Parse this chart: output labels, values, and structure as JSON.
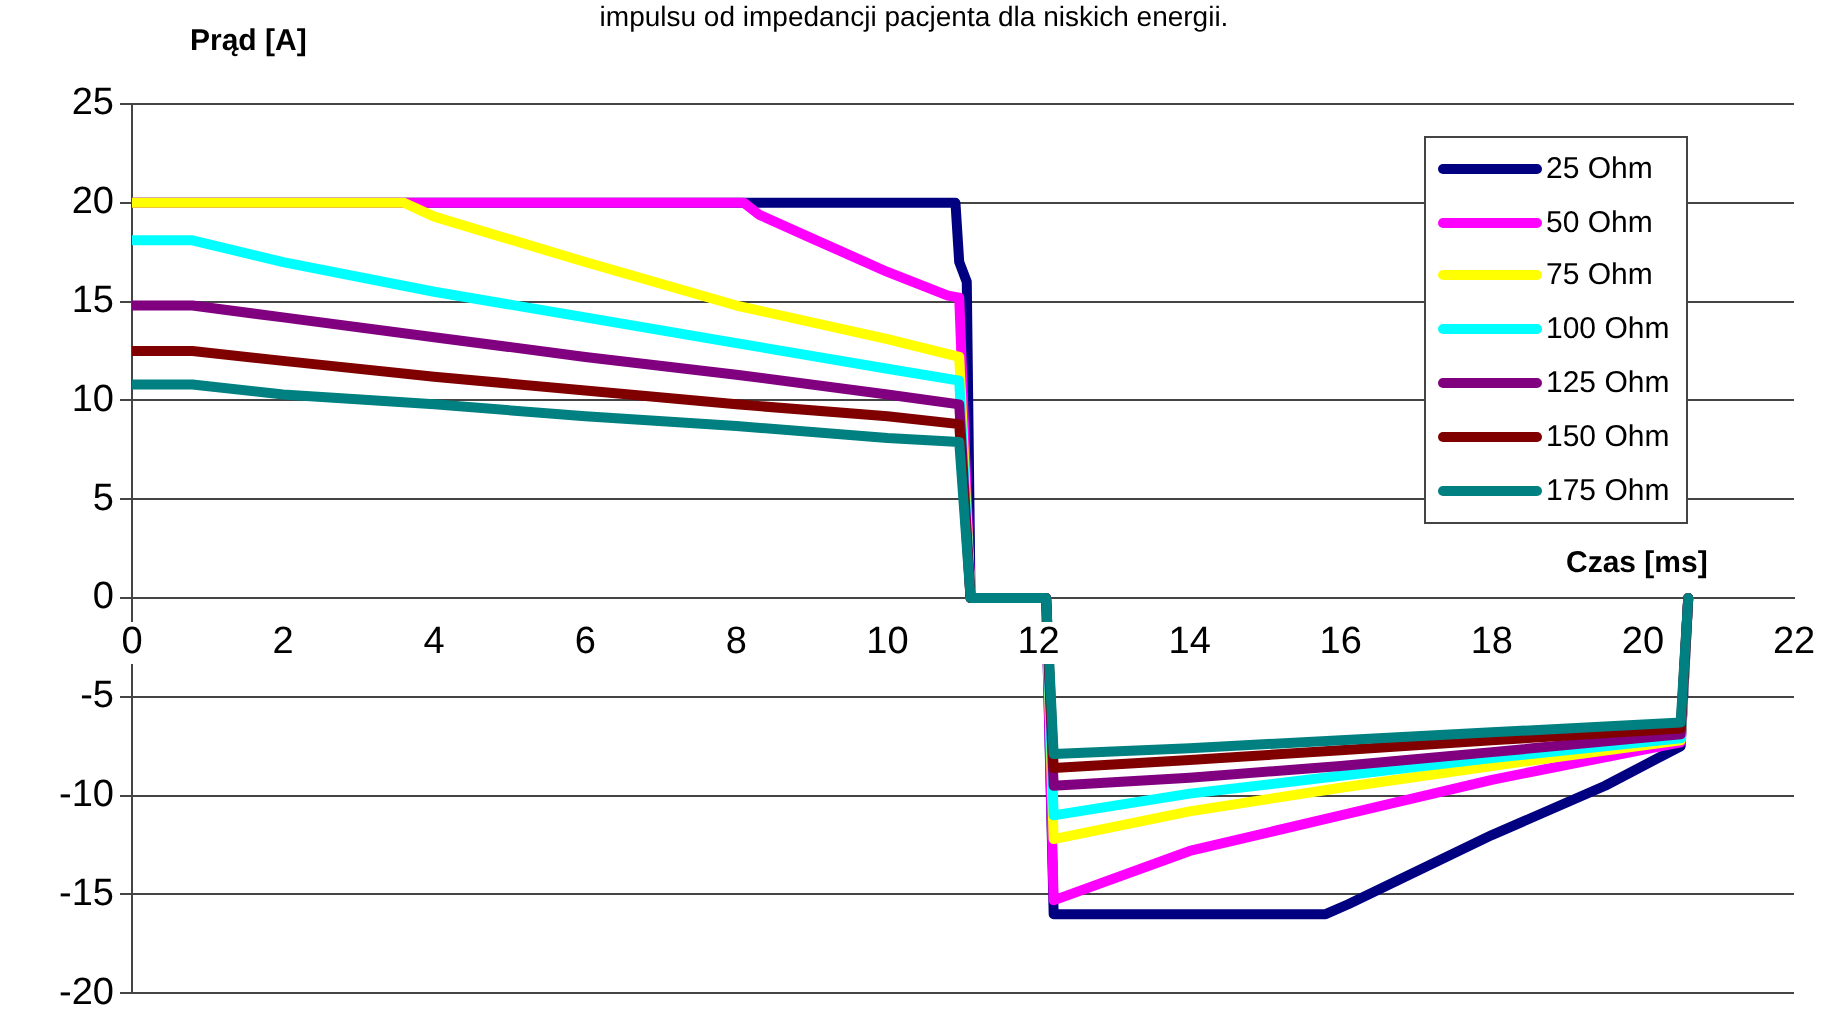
{
  "chart_data": {
    "type": "line",
    "title": "impulsu od impedancji pacjenta dla niskich energii.",
    "ylabel": "Prąd [A]",
    "xlabel": "Czas [ms]",
    "xlim": [
      0,
      22
    ],
    "xticks": [
      0,
      2,
      4,
      6,
      8,
      10,
      12,
      14,
      16,
      18,
      20,
      22
    ],
    "ylim": [
      -20,
      25
    ],
    "yticks": [
      -20,
      -15,
      -10,
      -5,
      0,
      5,
      10,
      15,
      20,
      25
    ],
    "grid": "y",
    "legend": "top right",
    "marker": "none",
    "line_style": "solid",
    "series": [
      {
        "name": "25 Ohm",
        "color": "#000080",
        "x": [
          0,
          10.9,
          10.95,
          11.05,
          11.1,
          12.1,
          12.2,
          15.8,
          16.1,
          18,
          19.5,
          20.5,
          20.6
        ],
        "values": [
          20,
          20,
          17,
          16,
          0,
          0,
          -16,
          -16,
          -15.5,
          -12,
          -9.5,
          -7.5,
          0
        ]
      },
      {
        "name": "50 Ohm",
        "color": "#ff00ff",
        "x": [
          0,
          8.1,
          8.3,
          9,
          10,
          10.8,
          10.95,
          11.1,
          12.1,
          12.2,
          14,
          16,
          18,
          20.5,
          20.6
        ],
        "values": [
          20,
          20,
          19.4,
          18.2,
          16.5,
          15.3,
          15.2,
          0,
          0,
          -15.3,
          -12.8,
          -11,
          -9.2,
          -7.3,
          0
        ]
      },
      {
        "name": "75 Ohm",
        "color": "#ffff00",
        "x": [
          0,
          3.6,
          4,
          6,
          8,
          10,
          10.95,
          11.1,
          12.1,
          12.2,
          14,
          16,
          18,
          20.5,
          20.6
        ],
        "values": [
          20,
          20,
          19.3,
          17,
          14.8,
          13.1,
          12.2,
          0,
          0,
          -12.2,
          -10.8,
          -9.6,
          -8.5,
          -7.2,
          0
        ]
      },
      {
        "name": "100 Ohm",
        "color": "#00ffff",
        "x": [
          0,
          0.8,
          2,
          4,
          6,
          8,
          10,
          10.95,
          11.1,
          12.1,
          12.2,
          14,
          16,
          18,
          20.5,
          20.6
        ],
        "values": [
          18.1,
          18.1,
          17,
          15.5,
          14.2,
          12.9,
          11.6,
          11,
          0,
          0,
          -11,
          -9.9,
          -9,
          -8.1,
          -7.1,
          0
        ]
      },
      {
        "name": "125 Ohm",
        "color": "#800080",
        "x": [
          0,
          0.8,
          2,
          4,
          6,
          8,
          10,
          10.95,
          11.1,
          12.1,
          12.2,
          14,
          16,
          18,
          20.5,
          20.6
        ],
        "values": [
          14.8,
          14.8,
          14.2,
          13.2,
          12.2,
          11.3,
          10.3,
          9.8,
          0,
          0,
          -9.5,
          -9.1,
          -8.5,
          -7.8,
          -6.9,
          0
        ]
      },
      {
        "name": "150 Ohm",
        "color": "#800000",
        "x": [
          0,
          0.8,
          2,
          4,
          6,
          8,
          10,
          10.95,
          11.1,
          12.1,
          12.2,
          14,
          16,
          18,
          20.5,
          20.6
        ],
        "values": [
          12.5,
          12.5,
          12,
          11.2,
          10.5,
          9.8,
          9.2,
          8.8,
          0,
          0,
          -8.6,
          -8.2,
          -7.7,
          -7.2,
          -6.6,
          0
        ]
      },
      {
        "name": "175 Ohm",
        "color": "#008080",
        "x": [
          0,
          0.8,
          2,
          4,
          6,
          8,
          10,
          10.95,
          11.1,
          12.1,
          12.2,
          14,
          16,
          18,
          20.5,
          20.6
        ],
        "values": [
          10.8,
          10.8,
          10.3,
          9.8,
          9.2,
          8.7,
          8.1,
          7.9,
          0,
          0,
          -7.9,
          -7.6,
          -7.2,
          -6.8,
          -6.3,
          0
        ]
      }
    ]
  }
}
